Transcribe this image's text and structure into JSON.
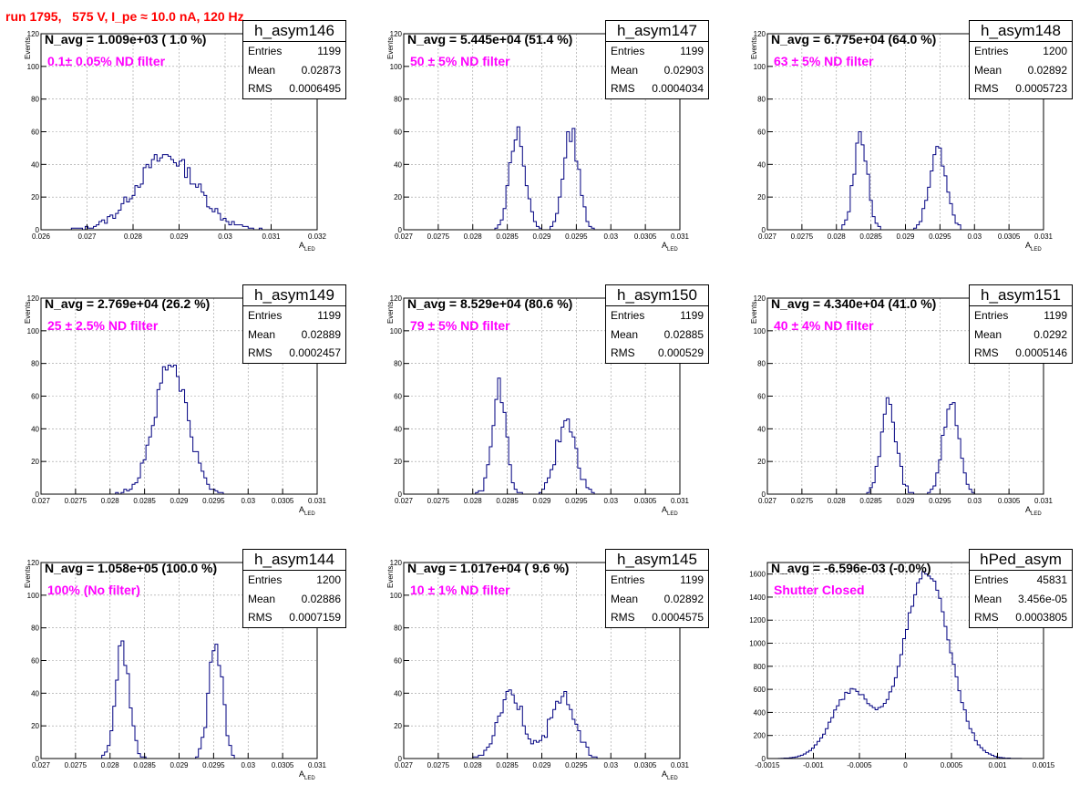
{
  "run_title": "run 1795,   575 V, I_pe ≈ 10.0 nA, 120 Hz",
  "chart_data": [
    {
      "type": "histogram",
      "name": "h_asym146",
      "navg": "N_avg = 1.009e+03 ( 1.0 %)",
      "filter": "0.1± 0.05% ND filter",
      "stats": {
        "entries": "1199",
        "mean": "0.02873",
        "rms": "0.0006495"
      },
      "xlim": [
        0.026,
        0.032
      ],
      "xticks": [
        0.026,
        0.027,
        0.028,
        0.029,
        0.03,
        0.031,
        0.032
      ],
      "xtick_labels": [
        "0.026",
        "0.027",
        "0.028",
        "0.029",
        "0.03",
        "0.031",
        "0.032"
      ],
      "ylim": [
        0,
        120
      ],
      "yticks": [
        0,
        20,
        40,
        60,
        80,
        100,
        120
      ],
      "xlabel": "A",
      "xlabel_sub": "LED",
      "ylabel": "Events",
      "bin_width": 6e-05,
      "peaks": [
        {
          "center": 0.02873,
          "sigma": 0.00065,
          "height": 45
        }
      ]
    },
    {
      "type": "histogram",
      "name": "h_asym147",
      "navg": "N_avg = 5.445e+04 (51.4 %)",
      "filter": "50 ± 5% ND filter",
      "stats": {
        "entries": "1199",
        "mean": "0.02903",
        "rms": "0.0004034"
      },
      "xlim": [
        0.027,
        0.031
      ],
      "xticks": [
        0.027,
        0.0275,
        0.028,
        0.0285,
        0.029,
        0.0295,
        0.03,
        0.0305,
        0.031
      ],
      "xtick_labels": [
        "0.027",
        "0.0275",
        "0.028",
        "0.0285",
        "0.029",
        "0.0295",
        "0.03",
        "0.0305",
        "0.031"
      ],
      "ylim": [
        0,
        120
      ],
      "yticks": [
        0,
        20,
        40,
        60,
        80,
        100,
        120
      ],
      "xlabel": "A",
      "xlabel_sub": "LED",
      "ylabel": "Events",
      "bin_width": 4e-05,
      "peaks": [
        {
          "center": 0.02865,
          "sigma": 0.00011,
          "height": 60
        },
        {
          "center": 0.02942,
          "sigma": 0.00011,
          "height": 60
        }
      ]
    },
    {
      "type": "histogram",
      "name": "h_asym148",
      "navg": "N_avg = 6.775e+04 (64.0 %)",
      "filter": "63 ± 5% ND filter",
      "stats": {
        "entries": "1200",
        "mean": "0.02892",
        "rms": "0.0005723"
      },
      "xlim": [
        0.027,
        0.031
      ],
      "xticks": [
        0.027,
        0.0275,
        0.028,
        0.0285,
        0.029,
        0.0295,
        0.03,
        0.0305,
        0.031
      ],
      "xtick_labels": [
        "0.027",
        "0.0275",
        "0.028",
        "0.0285",
        "0.029",
        "0.0295",
        "0.03",
        "0.0305",
        "0.031"
      ],
      "ylim": [
        0,
        120
      ],
      "yticks": [
        0,
        20,
        40,
        60,
        80,
        100,
        120
      ],
      "xlabel": "A",
      "xlabel_sub": "LED",
      "ylabel": "Events",
      "bin_width": 4e-05,
      "peaks": [
        {
          "center": 0.02835,
          "sigma": 0.0001,
          "height": 58
        },
        {
          "center": 0.02947,
          "sigma": 0.00012,
          "height": 50
        }
      ]
    },
    {
      "type": "histogram",
      "name": "h_asym149",
      "navg": "N_avg = 2.769e+04 (26.2 %)",
      "filter": "25 ± 2.5% ND filter",
      "stats": {
        "entries": "1199",
        "mean": "0.02889",
        "rms": "0.0002457"
      },
      "xlim": [
        0.027,
        0.031
      ],
      "xticks": [
        0.027,
        0.0275,
        0.028,
        0.0285,
        0.029,
        0.0295,
        0.03,
        0.0305,
        0.031
      ],
      "xtick_labels": [
        "0.027",
        "0.0275",
        "0.028",
        "0.0285",
        "0.029",
        "0.0295",
        "0.03",
        "0.0305",
        "0.031"
      ],
      "ylim": [
        0,
        120
      ],
      "yticks": [
        0,
        20,
        40,
        60,
        80,
        100,
        120
      ],
      "xlabel": "A",
      "xlabel_sub": "LED",
      "ylabel": "Events",
      "bin_width": 4e-05,
      "peaks": [
        {
          "center": 0.02888,
          "sigma": 0.00024,
          "height": 80
        }
      ]
    },
    {
      "type": "histogram",
      "name": "h_asym150",
      "navg": "N_avg = 8.529e+04 (80.6 %)",
      "filter": "79 ± 5% ND filter",
      "stats": {
        "entries": "1199",
        "mean": "0.02885",
        "rms": "0.000529"
      },
      "xlim": [
        0.027,
        0.031
      ],
      "xticks": [
        0.027,
        0.0275,
        0.028,
        0.0285,
        0.029,
        0.0295,
        0.03,
        0.0305,
        0.031
      ],
      "xtick_labels": [
        "0.027",
        "0.0275",
        "0.028",
        "0.0285",
        "0.029",
        "0.0295",
        "0.03",
        "0.0305",
        "0.031"
      ],
      "ylim": [
        0,
        120
      ],
      "yticks": [
        0,
        20,
        40,
        60,
        80,
        100,
        120
      ],
      "xlabel": "A",
      "xlabel_sub": "LED",
      "ylabel": "Events",
      "bin_width": 4e-05,
      "peaks": [
        {
          "center": 0.02838,
          "sigma": 0.0001,
          "height": 65
        },
        {
          "center": 0.02935,
          "sigma": 0.00014,
          "height": 45
        }
      ]
    },
    {
      "type": "histogram",
      "name": "h_asym151",
      "navg": "N_avg = 4.340e+04 (41.0 %)",
      "filter": "40 ± 4% ND filter",
      "stats": {
        "entries": "1199",
        "mean": "0.0292",
        "rms": "0.0005146"
      },
      "xlim": [
        0.027,
        0.031
      ],
      "xticks": [
        0.027,
        0.0275,
        0.028,
        0.0285,
        0.029,
        0.0295,
        0.03,
        0.0305,
        0.031
      ],
      "xtick_labels": [
        "0.027",
        "0.0275",
        "0.028",
        "0.0285",
        "0.029",
        "0.0295",
        "0.03",
        "0.0305",
        "0.031"
      ],
      "ylim": [
        0,
        120
      ],
      "yticks": [
        0,
        20,
        40,
        60,
        80,
        100,
        120
      ],
      "xlabel": "A",
      "xlabel_sub": "LED",
      "ylabel": "Events",
      "bin_width": 4e-05,
      "peaks": [
        {
          "center": 0.02876,
          "sigma": 0.00011,
          "height": 55
        },
        {
          "center": 0.02966,
          "sigma": 0.00011,
          "height": 58
        }
      ]
    },
    {
      "type": "histogram",
      "name": "h_asym144",
      "navg": "N_avg = 1.058e+05 (100.0 %)",
      "filter": "100% (No filter)",
      "stats": {
        "entries": "1200",
        "mean": "0.02886",
        "rms": "0.0007159"
      },
      "xlim": [
        0.027,
        0.031
      ],
      "xticks": [
        0.027,
        0.0275,
        0.028,
        0.0285,
        0.029,
        0.0295,
        0.03,
        0.0305,
        0.031
      ],
      "xtick_labels": [
        "0.027",
        "0.0275",
        "0.028",
        "0.0285",
        "0.029",
        "0.0295",
        "0.03",
        "0.0305",
        "0.031"
      ],
      "ylim": [
        0,
        120
      ],
      "yticks": [
        0,
        20,
        40,
        60,
        80,
        100,
        120
      ],
      "xlabel": "A",
      "xlabel_sub": "LED",
      "ylabel": "Events",
      "bin_width": 4e-05,
      "peaks": [
        {
          "center": 0.02818,
          "sigma": 0.0001,
          "height": 68
        },
        {
          "center": 0.02953,
          "sigma": 0.0001,
          "height": 70
        }
      ]
    },
    {
      "type": "histogram",
      "name": "h_asym145",
      "navg": "N_avg = 1.017e+04 ( 9.6 %)",
      "filter": "10 ± 1% ND filter",
      "stats": {
        "entries": "1199",
        "mean": "0.02892",
        "rms": "0.0004575"
      },
      "xlim": [
        0.027,
        0.031
      ],
      "xticks": [
        0.027,
        0.0275,
        0.028,
        0.0285,
        0.029,
        0.0295,
        0.03,
        0.0305,
        0.031
      ],
      "xtick_labels": [
        "0.027",
        "0.0275",
        "0.028",
        "0.0285",
        "0.029",
        "0.0295",
        "0.03",
        "0.0305",
        "0.031"
      ],
      "ylim": [
        0,
        120
      ],
      "yticks": [
        0,
        20,
        40,
        60,
        80,
        100,
        120
      ],
      "xlabel": "A",
      "xlabel_sub": "LED",
      "ylabel": "Events",
      "bin_width": 4e-05,
      "peaks": [
        {
          "center": 0.02855,
          "sigma": 0.00018,
          "height": 40
        },
        {
          "center": 0.0293,
          "sigma": 0.00018,
          "height": 38
        }
      ]
    },
    {
      "type": "histogram",
      "name": "hPed_asym",
      "navg": "N_avg = -6.596e-03 (-0.0%)",
      "filter": "Shutter Closed",
      "stats": {
        "entries": "45831",
        "mean": "3.456e-05",
        "rms": "0.0003805"
      },
      "xlim": [
        -0.0015,
        0.0015
      ],
      "xticks": [
        -0.0015,
        -0.001,
        -0.0005,
        0,
        0.0005,
        0.001,
        0.0015
      ],
      "xtick_labels": [
        "-0.0015",
        "-0.001",
        "-0.0005",
        "0",
        "0.0005",
        "0.001",
        "0.0015"
      ],
      "ylim": [
        0,
        1700
      ],
      "yticks": [
        0,
        200,
        400,
        600,
        800,
        1000,
        1200,
        1400,
        1600
      ],
      "xlabel": "",
      "xlabel_sub": "",
      "ylabel": "",
      "bin_width": 3e-05,
      "peaks": [
        {
          "center": -0.00058,
          "sigma": 0.00022,
          "height": 580
        },
        {
          "center": 0.00023,
          "sigma": 0.00025,
          "height": 1620
        }
      ]
    }
  ]
}
